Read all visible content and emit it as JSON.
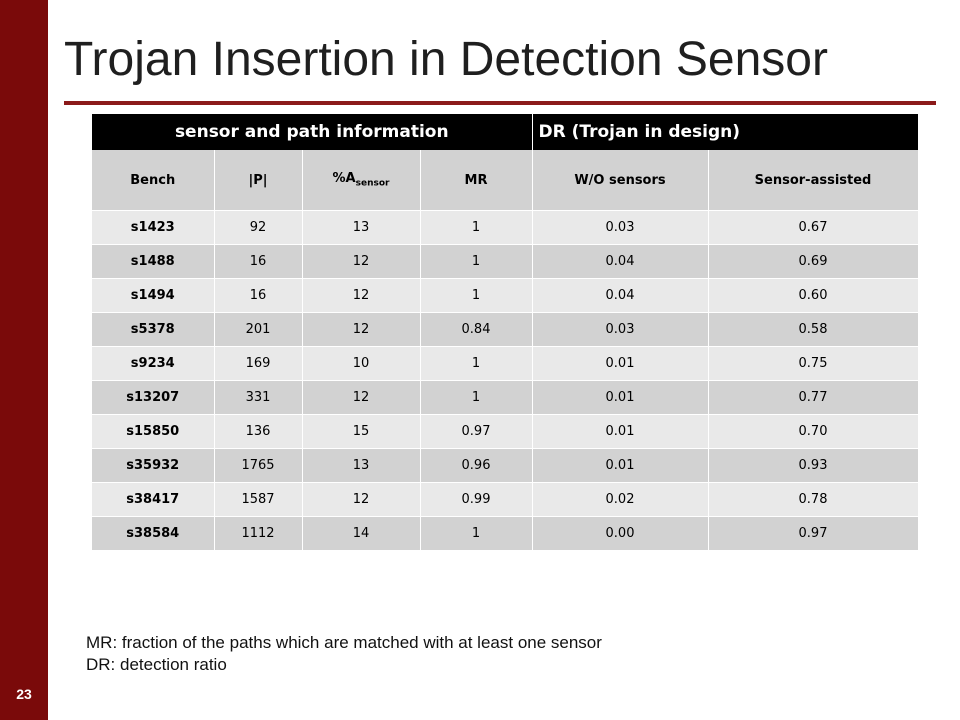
{
  "slide": {
    "title": "Trojan Insertion in Detection Sensor",
    "number": "23"
  },
  "table": {
    "group_headers": [
      "sensor and path information",
      "DR (Trojan in design)"
    ],
    "columns": {
      "bench": "Bench",
      "p": "|P|",
      "area_prefix": "%A",
      "area_sub": "sensor",
      "mr": "MR",
      "wo_sensors": "W/O sensors",
      "sensor_assisted": "Sensor-assisted"
    },
    "rows": [
      [
        "s1423",
        "92",
        "13",
        "1",
        "0.03",
        "0.67"
      ],
      [
        "s1488",
        "16",
        "12",
        "1",
        "0.04",
        "0.69"
      ],
      [
        "s1494",
        "16",
        "12",
        "1",
        "0.04",
        "0.60"
      ],
      [
        "s5378",
        "201",
        "12",
        "0.84",
        "0.03",
        "0.58"
      ],
      [
        "s9234",
        "169",
        "10",
        "1",
        "0.01",
        "0.75"
      ],
      [
        "s13207",
        "331",
        "12",
        "1",
        "0.01",
        "0.77"
      ],
      [
        "s15850",
        "136",
        "15",
        "0.97",
        "0.01",
        "0.70"
      ],
      [
        "s35932",
        "1765",
        "13",
        "0.96",
        "0.01",
        "0.93"
      ],
      [
        "s38417",
        "1587",
        "12",
        "0.99",
        "0.02",
        "0.78"
      ],
      [
        "s38584",
        "1112",
        "14",
        "1",
        "0.00",
        "0.97"
      ]
    ]
  },
  "notes": {
    "mr": "MR: fraction of the paths which are matched with at least one sensor",
    "dr": "DR: detection ratio"
  },
  "colors": {
    "accent_bar": "#7a0a0a",
    "title_rule": "#8b1a1a",
    "header_bg": "#000000",
    "row_light": "#e9e9e9",
    "row_dark": "#d2d2d2"
  }
}
